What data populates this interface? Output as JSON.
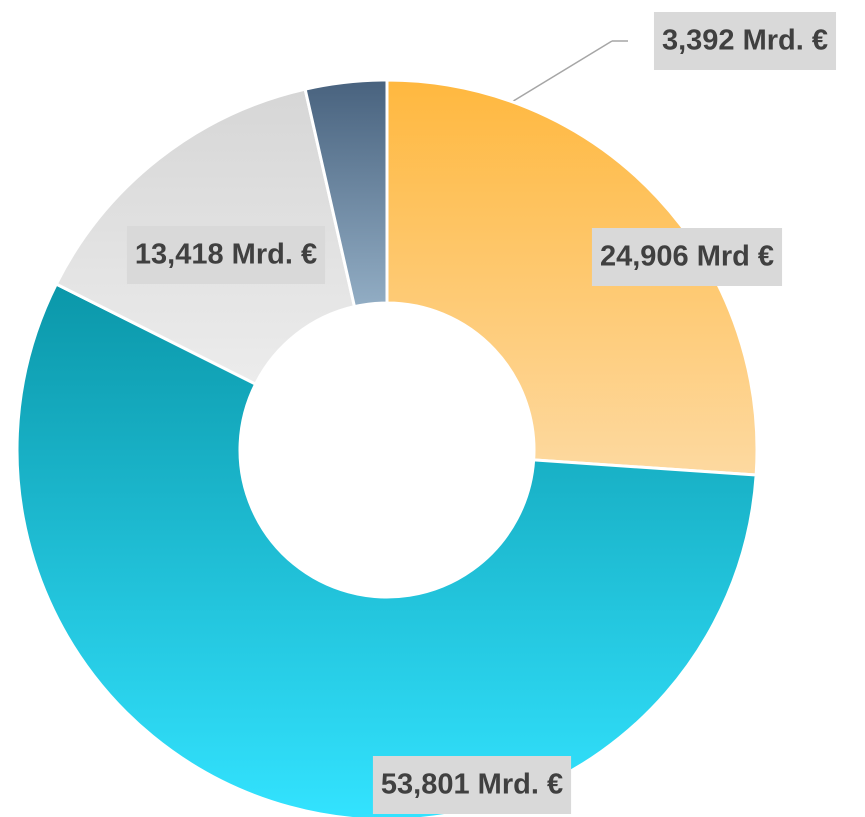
{
  "chart_data": {
    "type": "donut",
    "categories": [
      "24,906 Mrd €",
      "53,801 Mrd. €",
      "13,418 Mrd. €",
      "3,392 Mrd. €"
    ],
    "values": [
      24.906,
      53.801,
      13.418,
      3.392
    ],
    "value_labels": [
      "24,906 Mrd €",
      "53,801 Mrd. €",
      "13,418 Mrd. €",
      "3,392 Mrd. €"
    ],
    "colors": [
      [
        "#ffb83f",
        "#fdd9a0"
      ],
      [
        "#0b97a9",
        "#33e3ff"
      ],
      [
        "#d6d6d6",
        "#ececec"
      ],
      [
        "#48627e",
        "#92adc4"
      ]
    ]
  }
}
